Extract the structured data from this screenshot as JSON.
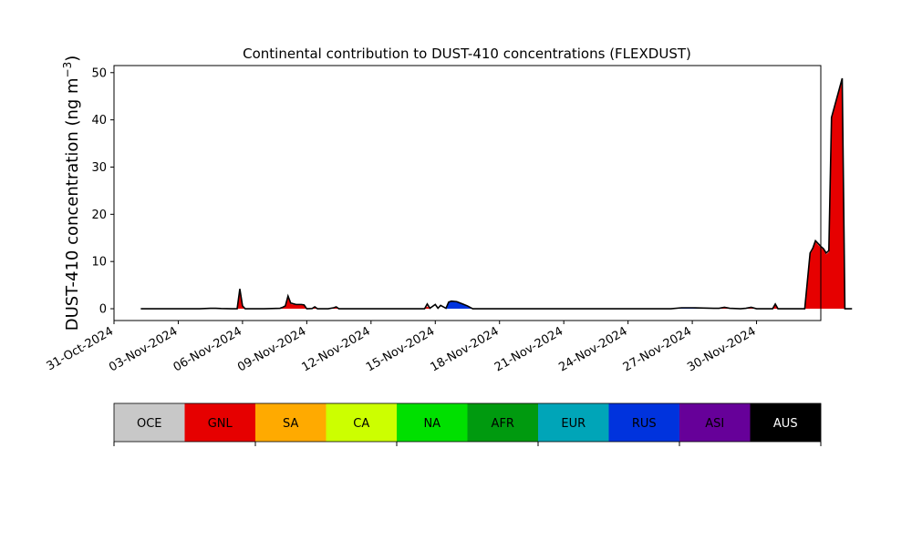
{
  "chart_data": {
    "type": "area",
    "title": "Continental contribution to DUST-410 concentrations (FLEXDUST)",
    "ylabel_main": "DUST-410 concentration (ng m",
    "ylabel_sup": "−3",
    "ylabel_close": ")",
    "xlabel": "",
    "stacked": true,
    "ylim": [
      -2.5,
      51.5
    ],
    "xlim": [
      "2024-10-31T00:00",
      "2024-12-03T00:00"
    ],
    "y_ticks": [
      0,
      10,
      20,
      30,
      40,
      50
    ],
    "x_ticks": [
      {
        "date": "2024-10-31",
        "label": "31-Oct-2024"
      },
      {
        "date": "2024-11-03",
        "label": "03-Nov-2024"
      },
      {
        "date": "2024-11-06",
        "label": "06-Nov-2024"
      },
      {
        "date": "2024-11-09",
        "label": "09-Nov-2024"
      },
      {
        "date": "2024-11-12",
        "label": "12-Nov-2024"
      },
      {
        "date": "2024-11-15",
        "label": "15-Nov-2024"
      },
      {
        "date": "2024-11-18",
        "label": "18-Nov-2024"
      },
      {
        "date": "2024-11-21",
        "label": "21-Nov-2024"
      },
      {
        "date": "2024-11-24",
        "label": "24-Nov-2024"
      },
      {
        "date": "2024-11-27",
        "label": "27-Nov-2024"
      },
      {
        "date": "2024-11-30",
        "label": "30-Nov-2024"
      }
    ],
    "legend_items": [
      {
        "label": "OCE",
        "color": "#c8c8c8",
        "text_color": "#000000"
      },
      {
        "label": "GNL",
        "color": "#e60000",
        "text_color": "#000000"
      },
      {
        "label": "SA",
        "color": "#ffaa00",
        "text_color": "#000000"
      },
      {
        "label": "CA",
        "color": "#ccff00",
        "text_color": "#000000"
      },
      {
        "label": "NA",
        "color": "#00e000",
        "text_color": "#000000"
      },
      {
        "label": "AFR",
        "color": "#009a0f",
        "text_color": "#000000"
      },
      {
        "label": "EUR",
        "color": "#00a5b8",
        "text_color": "#000000"
      },
      {
        "label": "RUS",
        "color": "#0033dd",
        "text_color": "#000000"
      },
      {
        "label": "ASI",
        "color": "#660099",
        "text_color": "#000000"
      },
      {
        "label": "AUS",
        "color": "#000000",
        "text_color": "#ffffff"
      }
    ],
    "total_color": "#000000",
    "x": [
      "2024-11-01T06:00",
      "2024-11-04T00:00",
      "2024-11-04T12:00",
      "2024-11-04T18:00",
      "2024-11-05T00:00",
      "2024-11-05T12:00",
      "2024-11-05T18:00",
      "2024-11-05T21:00",
      "2024-11-06T00:00",
      "2024-11-06T03:00",
      "2024-11-06T06:00",
      "2024-11-07T00:00",
      "2024-11-07T18:00",
      "2024-11-07T21:00",
      "2024-11-08T00:00",
      "2024-11-08T03:00",
      "2024-11-08T06:00",
      "2024-11-08T12:00",
      "2024-11-08T18:00",
      "2024-11-08T21:00",
      "2024-11-09T00:00",
      "2024-11-09T06:00",
      "2024-11-09T09:00",
      "2024-11-09T12:00",
      "2024-11-10T00:00",
      "2024-11-10T06:00",
      "2024-11-10T09:00",
      "2024-11-10T12:00",
      "2024-11-14T00:00",
      "2024-11-14T12:00",
      "2024-11-14T15:00",
      "2024-11-14T18:00",
      "2024-11-15T00:00",
      "2024-11-15T03:00",
      "2024-11-15T06:00",
      "2024-11-15T12:00",
      "2024-11-15T15:00",
      "2024-11-15T18:00",
      "2024-11-16T00:00",
      "2024-11-16T12:00",
      "2024-11-16T18:00",
      "2024-11-16T21:00",
      "2024-11-17T06:00",
      "2024-11-17T12:00",
      "2024-11-17T15:00",
      "2024-11-17T18:00",
      "2024-11-26T00:00",
      "2024-11-26T12:00",
      "2024-11-27T00:00",
      "2024-11-28T00:00",
      "2024-11-28T06:00",
      "2024-11-28T12:00",
      "2024-11-28T18:00",
      "2024-11-29T06:00",
      "2024-11-29T12:00",
      "2024-11-29T18:00",
      "2024-11-30T00:00",
      "2024-11-30T18:00",
      "2024-11-30T21:00",
      "2024-12-01T00:00",
      "2024-12-01T06:00",
      "2024-12-01T12:00",
      "2024-12-01T18:00",
      "2024-12-02T00:00",
      "2024-12-02T06:00",
      "2024-12-02T12:00",
      "2024-12-02T15:00",
      "2024-12-02T18:00",
      "2024-12-02T21:00",
      "2024-12-03T00:00",
      "2024-12-03T03:00",
      "2024-12-03T06:00",
      "2024-12-03T09:00",
      "2024-12-03T12:00",
      "2024-12-04T00:00",
      "2024-12-04T03:00",
      "2024-12-04T06:00",
      "2024-12-04T09:00",
      "2024-12-04T10:00",
      "2024-12-04T11:00"
    ],
    "series": [
      {
        "name": "GNL",
        "color": "#e60000",
        "values": [
          0,
          0,
          0.05,
          0.1,
          0.05,
          0,
          0,
          3.5,
          0.5,
          0,
          0,
          0,
          0.1,
          0.3,
          0.5,
          2.5,
          1.0,
          0.8,
          0.9,
          0.7,
          0,
          0.05,
          0.3,
          0,
          0,
          0.15,
          0.3,
          0,
          0,
          0,
          0.5,
          0,
          0,
          0,
          0,
          0,
          0,
          0,
          0,
          0,
          0,
          0,
          0,
          0,
          0,
          0,
          0,
          0,
          0,
          0,
          0.05,
          0.2,
          0.1,
          0,
          0.1,
          0.2,
          0,
          0,
          0.8,
          0,
          0,
          0,
          0,
          0,
          0,
          11.5,
          12.5,
          14.2,
          13.5,
          13.0,
          12.5,
          11.5,
          12.0,
          40.0,
          48.5,
          0,
          0,
          0,
          0,
          0
        ]
      },
      {
        "name": "RUS",
        "color": "#0033dd",
        "values": [
          0,
          0,
          0,
          0,
          0,
          0,
          0,
          0,
          0,
          0,
          0,
          0,
          0,
          0,
          0,
          0,
          0,
          0,
          0,
          0,
          0,
          0,
          0,
          0,
          0,
          0,
          0,
          0,
          0,
          0,
          0,
          0,
          0,
          0,
          0,
          0,
          1.3,
          1.5,
          1.4,
          0.5,
          0,
          0,
          0,
          0,
          0,
          0,
          0,
          0.15,
          0.2,
          0.1,
          0.05,
          0.1,
          0,
          0,
          0,
          0,
          0,
          0,
          0,
          0,
          0,
          0,
          0,
          0,
          0,
          0,
          0,
          0,
          0,
          0,
          0,
          0,
          0,
          0,
          0,
          0,
          0,
          0,
          0,
          0
        ]
      },
      {
        "name": "AFR",
        "color": "#009a0f",
        "values": [
          0,
          0,
          0,
          0,
          0,
          0,
          0,
          0,
          0,
          0,
          0,
          0,
          0,
          0,
          0,
          0,
          0,
          0,
          0,
          0,
          0,
          0,
          0,
          0,
          0,
          0,
          0,
          0,
          0,
          0,
          0,
          0,
          0,
          0,
          0,
          0,
          0,
          0,
          0,
          0,
          0,
          0,
          0,
          0,
          0,
          0,
          0,
          0,
          0,
          0,
          0,
          0,
          0,
          0,
          0,
          0,
          0,
          0,
          0,
          0,
          0,
          0,
          0,
          0,
          0,
          0,
          0,
          0,
          0,
          0,
          0,
          0,
          0,
          0,
          0,
          0,
          0,
          0,
          0,
          0
        ]
      }
    ],
    "total": [
      0,
      0,
      0.1,
      0.1,
      0.05,
      0,
      0,
      4.2,
      0.6,
      0,
      0,
      0,
      0.1,
      0.3,
      0.6,
      2.7,
      1.2,
      0.9,
      0.9,
      0.8,
      0,
      0.05,
      0.4,
      0,
      0,
      0.2,
      0.4,
      0,
      0,
      0,
      1.0,
      0.1,
      0.9,
      0.1,
      0.7,
      0.1,
      1.4,
      1.6,
      1.5,
      0.6,
      0,
      0,
      0,
      0,
      0,
      0,
      0,
      0.2,
      0.2,
      0.1,
      0.1,
      0.3,
      0.1,
      0,
      0.1,
      0.3,
      0,
      0,
      1.0,
      0,
      0,
      0,
      0,
      0,
      0,
      11.8,
      12.8,
      14.4,
      13.8,
      13.2,
      12.7,
      11.8,
      12.3,
      40.5,
      48.8,
      0,
      0,
      0,
      0,
      0
    ]
  }
}
